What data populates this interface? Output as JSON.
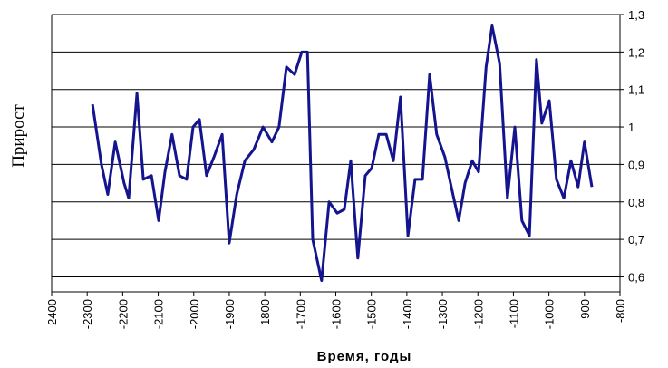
{
  "chart_data": {
    "type": "line",
    "x_label": "Время, годы",
    "y_label": "Прирост",
    "x": [
      -2285,
      -2260,
      -2242,
      -2221,
      -2196,
      -2183,
      -2160,
      -2142,
      -2119,
      -2099,
      -2081,
      -2061,
      -2040,
      -2020,
      -2002,
      -1984,
      -1964,
      -1943,
      -1920,
      -1900,
      -1879,
      -1856,
      -1831,
      -1805,
      -1780,
      -1760,
      -1739,
      -1716,
      -1696,
      -1680,
      -1665,
      -1640,
      -1619,
      -1596,
      -1576,
      -1558,
      -1538,
      -1517,
      -1499,
      -1479,
      -1458,
      -1438,
      -1418,
      -1397,
      -1377,
      -1356,
      -1336,
      -1316,
      -1293,
      -1275,
      -1254,
      -1236,
      -1216,
      -1198,
      -1177,
      -1160,
      -1139,
      -1117,
      -1096,
      -1076,
      -1055,
      -1035,
      -1020,
      -999,
      -979,
      -958,
      -938,
      -918,
      -900,
      -879
    ],
    "series": [
      {
        "color": "#14148f",
        "values": [
          1.06,
          0.9,
          0.82,
          0.96,
          0.85,
          0.81,
          1.09,
          0.86,
          0.87,
          0.75,
          0.88,
          0.98,
          0.87,
          0.86,
          1.0,
          1.02,
          0.87,
          0.92,
          0.98,
          0.69,
          0.82,
          0.91,
          0.94,
          1.0,
          0.96,
          1.0,
          1.16,
          1.14,
          1.2,
          1.2,
          0.7,
          0.59,
          0.8,
          0.77,
          0.78,
          0.91,
          0.65,
          0.87,
          0.89,
          0.98,
          0.98,
          0.91,
          1.08,
          0.71,
          0.86,
          0.86,
          1.14,
          0.98,
          0.92,
          0.84,
          0.75,
          0.85,
          0.91,
          0.88,
          1.16,
          1.27,
          1.17,
          0.81,
          1.0,
          0.75,
          0.71,
          1.18,
          1.01,
          1.07,
          0.86,
          0.81,
          0.91,
          0.84,
          0.96,
          0.84
        ]
      }
    ],
    "xlim": [
      -2400,
      -800
    ],
    "xticks": [
      -2400,
      -2300,
      -2200,
      -2100,
      -2000,
      -1900,
      -1800,
      -1700,
      -1600,
      -1500,
      -1400,
      -1300,
      -1200,
      -1100,
      -1000,
      -900,
      -800
    ],
    "ylim": [
      0.56,
      1.3
    ],
    "yticks": [
      {
        "value": 0.6,
        "label": "0,6"
      },
      {
        "value": 0.7,
        "label": "0,7"
      },
      {
        "value": 0.8,
        "label": "0,8"
      },
      {
        "value": 0.9,
        "label": "0,9"
      },
      {
        "value": 1,
        "label": "1"
      },
      {
        "value": 1.1,
        "label": "1,1"
      },
      {
        "value": 1.2,
        "label": "1,2"
      },
      {
        "value": 1.3,
        "label": "1,3"
      }
    ],
    "y_axis_side": "right",
    "grid": true
  }
}
